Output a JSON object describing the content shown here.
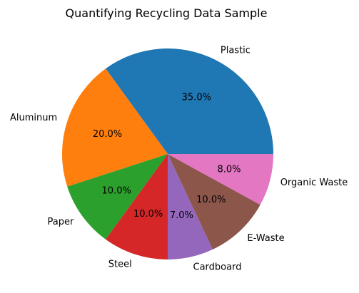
{
  "chart_data": {
    "type": "pie",
    "title": "Quantifying Recycling Data Sample",
    "slices": [
      {
        "label": "Plastic",
        "value": 35.0,
        "pct_label": "35.0%",
        "color": "#1f77b4"
      },
      {
        "label": "Aluminum",
        "value": 20.0,
        "pct_label": "20.0%",
        "color": "#ff7f0e"
      },
      {
        "label": "Paper",
        "value": 10.0,
        "pct_label": "10.0%",
        "color": "#2ca02c"
      },
      {
        "label": "Steel",
        "value": 10.0,
        "pct_label": "10.0%",
        "color": "#d62728"
      },
      {
        "label": "Cardboard",
        "value": 7.0,
        "pct_label": "7.0%",
        "color": "#9467bd"
      },
      {
        "label": "E-Waste",
        "value": 10.0,
        "pct_label": "10.0%",
        "color": "#8c564b"
      },
      {
        "label": "Organic Waste",
        "value": 8.0,
        "pct_label": "8.0%",
        "color": "#e377c2"
      }
    ],
    "start_angle_deg": 0,
    "direction": "counterclockwise",
    "legend": "none"
  }
}
